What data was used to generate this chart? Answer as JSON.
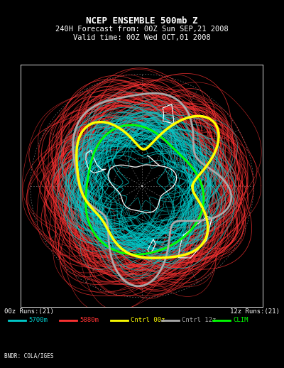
{
  "title_line1": "NCEP ENSEMBLE 500mb Z",
  "title_line2": "240H Forecast from: 00Z Sun SEP,21 2008",
  "title_line3": "Valid time: 00Z Wed OCT,01 2008",
  "label_left": "00z Runs:(21)",
  "label_right": "12z Runs:(21)",
  "legend_items": [
    {
      "color": "#00cccc",
      "label": "5700m"
    },
    {
      "color": "#ff3333",
      "label": "5880m"
    },
    {
      "color": "#ffff00",
      "label": "Cntrl 00z"
    },
    {
      "color": "#aaaaaa",
      "label": "Cntrl 12z"
    },
    {
      "color": "#00ff00",
      "label": "CLIM"
    }
  ],
  "credit": "BNDR: COLA/IGES",
  "background_color": "#000000",
  "text_color": "#ffffff",
  "ensemble_cyan_color": "#00cccc",
  "ensemble_red_color": "#ff3333",
  "control_00z_color": "#ffff00",
  "control_12z_color": "#aaaaaa",
  "clim_color": "#00ff00",
  "n_ensemble": 21,
  "figwidth": 4.0,
  "figheight": 5.18,
  "dpi": 100
}
